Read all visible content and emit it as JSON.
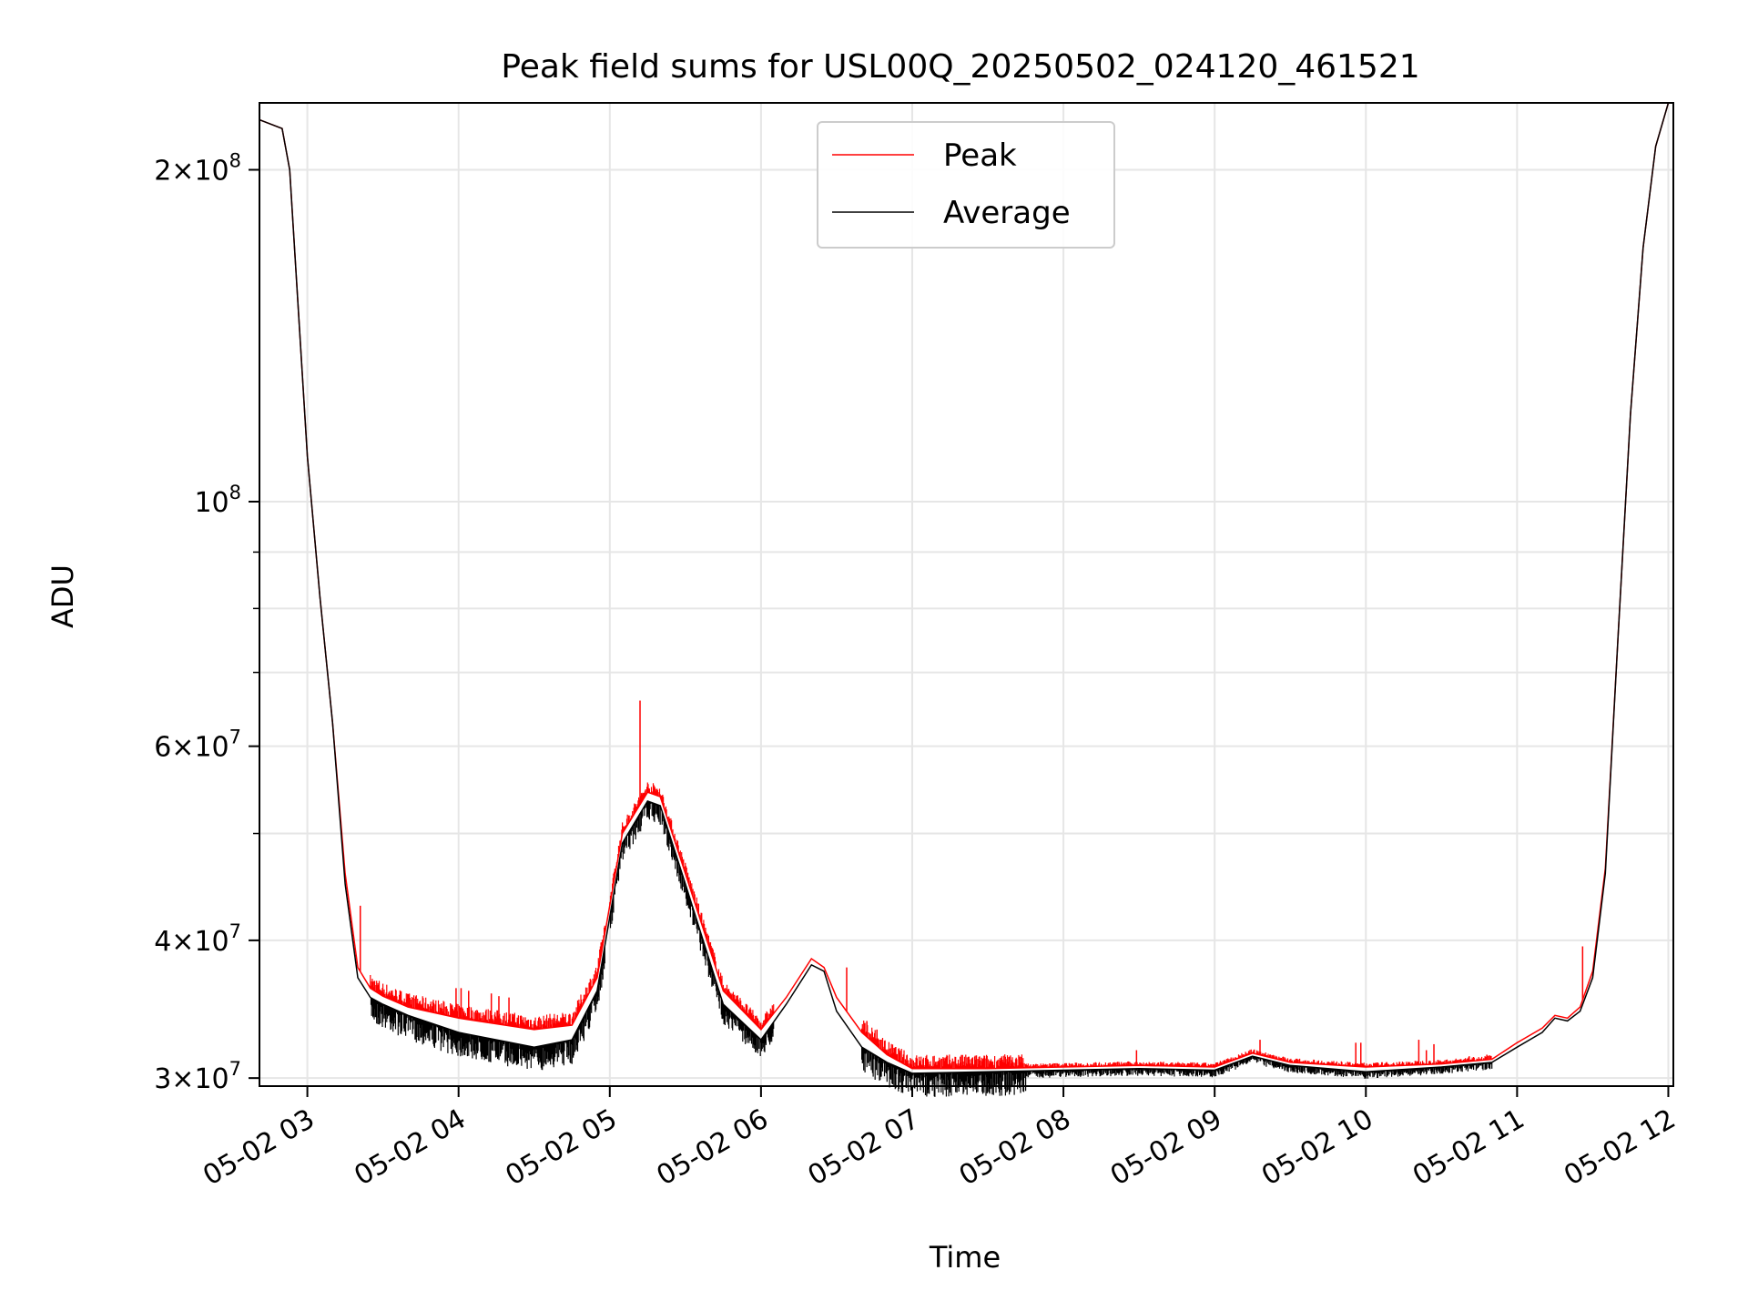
{
  "chart_data": {
    "type": "line",
    "title": "Peak field sums for USL00Q_20250502_024120_461521",
    "xlabel": "Time",
    "ylabel": "ADU",
    "y_scale": "log",
    "grid": true,
    "legend": {
      "placement": "top-center",
      "entries": [
        "Peak",
        "Average"
      ]
    },
    "colors": {
      "peak": "#ff0000",
      "average": "#000000",
      "grid": "#e6e6e6"
    },
    "xlim": [
      "2025-05-02 02:41",
      "2025-05-02 12:02"
    ],
    "ylim": [
      29500000,
      230000000
    ],
    "x_ticks": [
      {
        "t": "2025-05-02 03:00",
        "label": "05-02 03"
      },
      {
        "t": "2025-05-02 04:00",
        "label": "05-02 04"
      },
      {
        "t": "2025-05-02 05:00",
        "label": "05-02 05"
      },
      {
        "t": "2025-05-02 06:00",
        "label": "05-02 06"
      },
      {
        "t": "2025-05-02 07:00",
        "label": "05-02 07"
      },
      {
        "t": "2025-05-02 08:00",
        "label": "05-02 08"
      },
      {
        "t": "2025-05-02 09:00",
        "label": "05-02 09"
      },
      {
        "t": "2025-05-02 10:00",
        "label": "05-02 10"
      },
      {
        "t": "2025-05-02 11:00",
        "label": "05-02 11"
      },
      {
        "t": "2025-05-02 12:00",
        "label": "05-02 12"
      }
    ],
    "y_ticks": [
      {
        "v": 30000000,
        "mantissa": "3",
        "exp": "7",
        "kind": "sci"
      },
      {
        "v": 40000000,
        "mantissa": "4",
        "exp": "7",
        "kind": "sci"
      },
      {
        "v": 60000000,
        "mantissa": "6",
        "exp": "7",
        "kind": "sci"
      },
      {
        "v": 100000000,
        "mantissa": "",
        "exp": "8",
        "kind": "pow"
      },
      {
        "v": 200000000,
        "mantissa": "2",
        "exp": "8",
        "kind": "sci"
      }
    ],
    "y_minor_grid": [
      50000000,
      70000000,
      80000000,
      90000000
    ],
    "series": [
      {
        "name": "Average",
        "x": [
          "2025-05-02 02:41",
          "2025-05-02 02:50",
          "2025-05-02 02:53",
          "2025-05-02 03:00",
          "2025-05-02 03:05",
          "2025-05-02 03:10",
          "2025-05-02 03:15",
          "2025-05-02 03:20",
          "2025-05-02 03:25",
          "2025-05-02 03:30",
          "2025-05-02 03:40",
          "2025-05-02 04:00",
          "2025-05-02 04:30",
          "2025-05-02 04:45",
          "2025-05-02 04:55",
          "2025-05-02 05:05",
          "2025-05-02 05:15",
          "2025-05-02 05:20",
          "2025-05-02 05:30",
          "2025-05-02 05:45",
          "2025-05-02 06:00",
          "2025-05-02 06:10",
          "2025-05-02 06:20",
          "2025-05-02 06:25",
          "2025-05-02 06:30",
          "2025-05-02 06:40",
          "2025-05-02 06:50",
          "2025-05-02 07:00",
          "2025-05-02 07:30",
          "2025-05-02 08:00",
          "2025-05-02 08:30",
          "2025-05-02 09:00",
          "2025-05-02 09:15",
          "2025-05-02 09:30",
          "2025-05-02 10:00",
          "2025-05-02 10:30",
          "2025-05-02 10:50",
          "2025-05-02 11:00",
          "2025-05-02 11:10",
          "2025-05-02 11:15",
          "2025-05-02 11:20",
          "2025-05-02 11:25",
          "2025-05-02 11:30",
          "2025-05-02 11:35",
          "2025-05-02 11:40",
          "2025-05-02 11:45",
          "2025-05-02 11:50",
          "2025-05-02 11:55",
          "2025-05-02 12:00"
        ],
        "y": [
          222000000,
          218000000,
          200000000,
          110000000,
          82000000,
          63000000,
          45000000,
          37000000,
          35500000,
          35000000,
          34200000,
          33000000,
          32000000,
          32500000,
          36000000,
          49000000,
          53500000,
          53000000,
          45000000,
          35000000,
          32500000,
          35000000,
          38000000,
          37500000,
          34500000,
          32000000,
          31000000,
          30300000,
          30400000,
          30500000,
          30600000,
          30500000,
          31400000,
          30800000,
          30400000,
          30700000,
          31000000,
          32000000,
          33000000,
          34000000,
          33800000,
          34500000,
          37000000,
          46000000,
          75000000,
          120000000,
          170000000,
          210000000,
          230000000
        ]
      },
      {
        "name": "Peak",
        "x": [
          "2025-05-02 02:41",
          "2025-05-02 02:50",
          "2025-05-02 02:53",
          "2025-05-02 03:00",
          "2025-05-02 03:05",
          "2025-05-02 03:10",
          "2025-05-02 03:15",
          "2025-05-02 03:20",
          "2025-05-02 03:25",
          "2025-05-02 03:30",
          "2025-05-02 03:40",
          "2025-05-02 04:00",
          "2025-05-02 04:30",
          "2025-05-02 04:45",
          "2025-05-02 04:55",
          "2025-05-02 05:05",
          "2025-05-02 05:15",
          "2025-05-02 05:20",
          "2025-05-02 05:30",
          "2025-05-02 05:45",
          "2025-05-02 06:00",
          "2025-05-02 06:10",
          "2025-05-02 06:20",
          "2025-05-02 06:25",
          "2025-05-02 06:30",
          "2025-05-02 06:40",
          "2025-05-02 06:50",
          "2025-05-02 07:00",
          "2025-05-02 07:30",
          "2025-05-02 08:00",
          "2025-05-02 08:30",
          "2025-05-02 09:00",
          "2025-05-02 09:15",
          "2025-05-02 09:30",
          "2025-05-02 10:00",
          "2025-05-02 10:30",
          "2025-05-02 10:50",
          "2025-05-02 11:00",
          "2025-05-02 11:10",
          "2025-05-02 11:15",
          "2025-05-02 11:20",
          "2025-05-02 11:25",
          "2025-05-02 11:30",
          "2025-05-02 11:35",
          "2025-05-02 11:40",
          "2025-05-02 11:45",
          "2025-05-02 11:50",
          "2025-05-02 11:55",
          "2025-05-02 12:00"
        ],
        "y": [
          222000000,
          218000000,
          200000000,
          110000000,
          82000000,
          63000000,
          46000000,
          37800000,
          36200000,
          35600000,
          34800000,
          34000000,
          33200000,
          33500000,
          37000000,
          50000000,
          54500000,
          54000000,
          46000000,
          36000000,
          33200000,
          35500000,
          38500000,
          37800000,
          35500000,
          33000000,
          31500000,
          30600000,
          30600000,
          30700000,
          30800000,
          30700000,
          31600000,
          31000000,
          30700000,
          30900000,
          31200000,
          32300000,
          33300000,
          34200000,
          34000000,
          34800000,
          37500000,
          46500000,
          75000000,
          120000000,
          170000000,
          210000000,
          230000000
        ]
      }
    ],
    "spikes": [
      {
        "t": "2025-05-02 05:12",
        "y": 66000000
      },
      {
        "t": "2025-05-02 06:34",
        "y": 37800000
      },
      {
        "t": "2025-05-02 03:21",
        "y": 43000000
      },
      {
        "t": "2025-05-02 03:59",
        "y": 36200000
      },
      {
        "t": "2025-05-02 04:01",
        "y": 36200000
      },
      {
        "t": "2025-05-02 04:04",
        "y": 36000000
      },
      {
        "t": "2025-05-02 04:13",
        "y": 35800000
      },
      {
        "t": "2025-05-02 04:16",
        "y": 35600000
      },
      {
        "t": "2025-05-02 04:20",
        "y": 35500000
      },
      {
        "t": "2025-05-02 06:42",
        "y": 33800000
      },
      {
        "t": "2025-05-02 06:46",
        "y": 33200000
      },
      {
        "t": "2025-05-02 08:29",
        "y": 31800000
      },
      {
        "t": "2025-05-02 09:18",
        "y": 32500000
      },
      {
        "t": "2025-05-02 09:56",
        "y": 32300000
      },
      {
        "t": "2025-05-02 09:58",
        "y": 32300000
      },
      {
        "t": "2025-05-02 10:21",
        "y": 32500000
      },
      {
        "t": "2025-05-02 10:24",
        "y": 31800000
      },
      {
        "t": "2025-05-02 10:27",
        "y": 32200000
      },
      {
        "t": "2025-05-02 10:41",
        "y": 31400000
      },
      {
        "t": "2025-05-02 10:48",
        "y": 31500000
      },
      {
        "t": "2025-05-02 11:26",
        "y": 39500000
      }
    ]
  }
}
